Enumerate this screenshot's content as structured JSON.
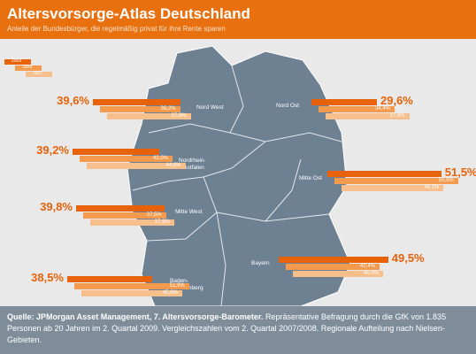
{
  "chart_data": {
    "type": "bar",
    "title": "Altersvorsorge-Atlas Deutschland",
    "subtitle": "Anteile der Bundesbürger, die regelmäßig privat für ihre Rente sparen",
    "categories": [
      "Nord West",
      "Nord Ost",
      "Nordrhein-\nWestfalen",
      "Mitte Ost",
      "Mitte West",
      "Bayern",
      "Baden-\nWürttemberg"
    ],
    "series": [
      {
        "name": "2009",
        "color": "#e8620a",
        "values": [
          39.6,
          29.6,
          39.2,
          51.5,
          39.8,
          49.5,
          38.5
        ],
        "value_labels": [
          "39,6%",
          "29,6%",
          "39,2%",
          "51,5%",
          "39,8%",
          "49,5%",
          "38,5%"
        ]
      },
      {
        "name": "2008",
        "color": "#f39a4c",
        "values": [
          36.2,
          34.4,
          42.0,
          55.9,
          37.5,
          42.4,
          51.9
        ],
        "value_labels": [
          "36,2%",
          "34,4%",
          "42,0%",
          "55,9%",
          "37,5%",
          "42,4%",
          "51,9%"
        ]
      },
      {
        "name": "2007",
        "color": "#f7bf8c",
        "values": [
          37.8,
          37.8,
          44.6,
          46.1,
          37.9,
          40.9,
          45.6
        ],
        "value_labels": [
          "37,8%",
          "37,8%",
          "44,6%",
          "46,1%",
          "37,9%",
          "40,9%",
          "45,6%"
        ]
      }
    ],
    "source_title": "Quelle: JPMorgan Asset Management, 7. Altersvorsorge-Barometer.",
    "source_text": "Repräsentative Befragung durch die GfK von 1.835 Personen ab 20 Jahren im 2. Quartal 2009. Vergleichszahlen vom 2. Quartal 2007/2008. Regionale Aufteilung nach Nielsen-Gebieten."
  }
}
